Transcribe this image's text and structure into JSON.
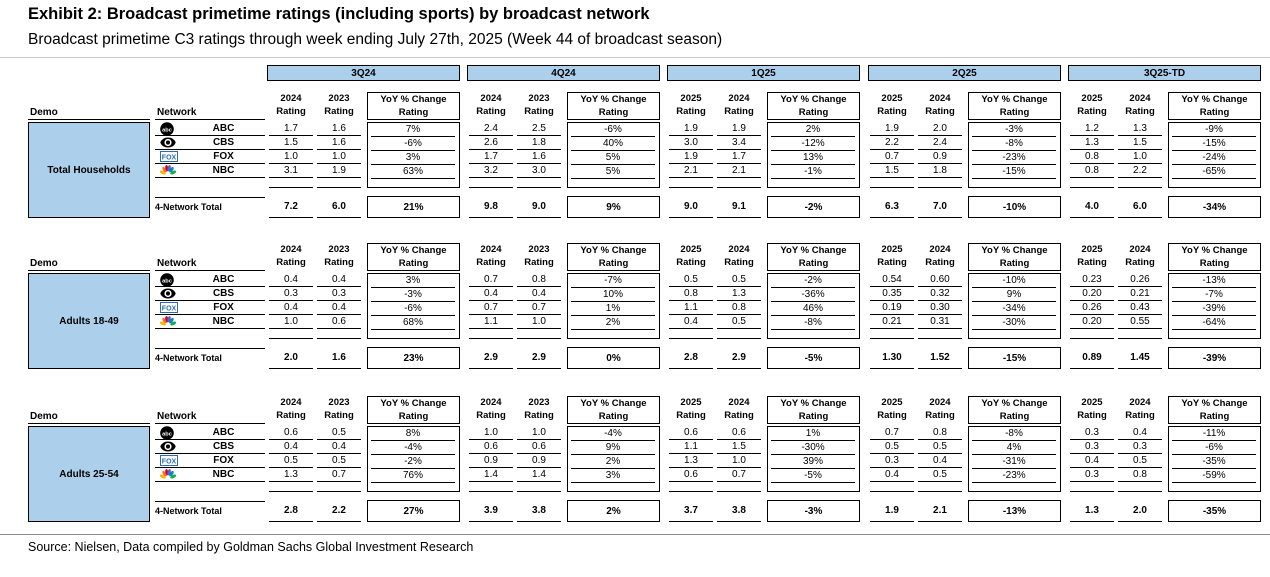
{
  "page": {
    "title": "Exhibit 2: Broadcast primetime ratings (including sports) by broadcast network",
    "subtitle": "Broadcast primetime C3 ratings through week ending July 27th, 2025 (Week 44 of broadcast season)",
    "source": "Source: Nielsen, Data compiled by Goldman Sachs Global Investment Research"
  },
  "colors": {
    "header_blue": "#ACCFEB",
    "border": "#000000"
  },
  "chart_data": {
    "type": "table",
    "title": "Broadcast primetime ratings (including sports) by broadcast network",
    "demo_col_header": "Demo",
    "network_col_header": "Network",
    "col_subheader": "Rating",
    "yoy_header": [
      "YoY % Change",
      "Rating"
    ],
    "total_row_label": "4-Network Total",
    "quarter_groups": [
      {
        "label": "3Q24",
        "col_years": [
          "2024",
          "2023"
        ]
      },
      {
        "label": "4Q24",
        "col_years": [
          "2024",
          "2023"
        ]
      },
      {
        "label": "1Q25",
        "col_years": [
          "2025",
          "2024"
        ]
      },
      {
        "label": "2Q25",
        "col_years": [
          "2025",
          "2024"
        ]
      },
      {
        "label": "3Q25-TD",
        "col_years": [
          "2025",
          "2024"
        ]
      }
    ],
    "networks": [
      {
        "name": "ABC",
        "icon": "abc-logo-icon"
      },
      {
        "name": "CBS",
        "icon": "cbs-eye-icon"
      },
      {
        "name": "FOX",
        "icon": "fox-logo-icon"
      },
      {
        "name": "NBC",
        "icon": "nbc-peacock-icon"
      }
    ],
    "blocks": [
      {
        "demo": "Total Households",
        "quarters": [
          {
            "rows": [
              [
                "1.7",
                "1.6",
                "7%"
              ],
              [
                "1.5",
                "1.6",
                "-6%"
              ],
              [
                "1.0",
                "1.0",
                "3%"
              ],
              [
                "3.1",
                "1.9",
                "63%"
              ]
            ],
            "total": [
              "7.2",
              "6.0",
              "21%"
            ]
          },
          {
            "rows": [
              [
                "2.4",
                "2.5",
                "-6%"
              ],
              [
                "2.6",
                "1.8",
                "40%"
              ],
              [
                "1.7",
                "1.6",
                "5%"
              ],
              [
                "3.2",
                "3.0",
                "5%"
              ]
            ],
            "total": [
              "9.8",
              "9.0",
              "9%"
            ]
          },
          {
            "rows": [
              [
                "1.9",
                "1.9",
                "2%"
              ],
              [
                "3.0",
                "3.4",
                "-12%"
              ],
              [
                "1.9",
                "1.7",
                "13%"
              ],
              [
                "2.1",
                "2.1",
                "-1%"
              ]
            ],
            "total": [
              "9.0",
              "9.1",
              "-2%"
            ]
          },
          {
            "rows": [
              [
                "1.9",
                "2.0",
                "-3%"
              ],
              [
                "2.2",
                "2.4",
                "-8%"
              ],
              [
                "0.7",
                "0.9",
                "-23%"
              ],
              [
                "1.5",
                "1.8",
                "-15%"
              ]
            ],
            "total": [
              "6.3",
              "7.0",
              "-10%"
            ]
          },
          {
            "rows": [
              [
                "1.2",
                "1.3",
                "-9%"
              ],
              [
                "1.3",
                "1.5",
                "-15%"
              ],
              [
                "0.8",
                "1.0",
                "-24%"
              ],
              [
                "0.8",
                "2.2",
                "-65%"
              ]
            ],
            "total": [
              "4.0",
              "6.0",
              "-34%"
            ]
          }
        ]
      },
      {
        "demo": "Adults 18-49",
        "quarters": [
          {
            "rows": [
              [
                "0.4",
                "0.4",
                "3%"
              ],
              [
                "0.3",
                "0.3",
                "-3%"
              ],
              [
                "0.4",
                "0.4",
                "-6%"
              ],
              [
                "1.0",
                "0.6",
                "68%"
              ]
            ],
            "total": [
              "2.0",
              "1.6",
              "23%"
            ]
          },
          {
            "rows": [
              [
                "0.7",
                "0.8",
                "-7%"
              ],
              [
                "0.4",
                "0.4",
                "10%"
              ],
              [
                "0.7",
                "0.7",
                "1%"
              ],
              [
                "1.1",
                "1.0",
                "2%"
              ]
            ],
            "total": [
              "2.9",
              "2.9",
              "0%"
            ]
          },
          {
            "rows": [
              [
                "0.5",
                "0.5",
                "-2%"
              ],
              [
                "0.8",
                "1.3",
                "-36%"
              ],
              [
                "1.1",
                "0.8",
                "46%"
              ],
              [
                "0.4",
                "0.5",
                "-8%"
              ]
            ],
            "total": [
              "2.8",
              "2.9",
              "-5%"
            ]
          },
          {
            "rows": [
              [
                "0.54",
                "0.60",
                "-10%"
              ],
              [
                "0.35",
                "0.32",
                "9%"
              ],
              [
                "0.19",
                "0.30",
                "-34%"
              ],
              [
                "0.21",
                "0.31",
                "-30%"
              ]
            ],
            "total": [
              "1.30",
              "1.52",
              "-15%"
            ]
          },
          {
            "rows": [
              [
                "0.23",
                "0.26",
                "-13%"
              ],
              [
                "0.20",
                "0.21",
                "-7%"
              ],
              [
                "0.26",
                "0.43",
                "-39%"
              ],
              [
                "0.20",
                "0.55",
                "-64%"
              ]
            ],
            "total": [
              "0.89",
              "1.45",
              "-39%"
            ]
          }
        ]
      },
      {
        "demo": "Adults 25-54",
        "quarters": [
          {
            "rows": [
              [
                "0.6",
                "0.5",
                "8%"
              ],
              [
                "0.4",
                "0.4",
                "-4%"
              ],
              [
                "0.5",
                "0.5",
                "-2%"
              ],
              [
                "1.3",
                "0.7",
                "76%"
              ]
            ],
            "total": [
              "2.8",
              "2.2",
              "27%"
            ]
          },
          {
            "rows": [
              [
                "1.0",
                "1.0",
                "-4%"
              ],
              [
                "0.6",
                "0.6",
                "9%"
              ],
              [
                "0.9",
                "0.9",
                "2%"
              ],
              [
                "1.4",
                "1.4",
                "3%"
              ]
            ],
            "total": [
              "3.9",
              "3.8",
              "2%"
            ]
          },
          {
            "rows": [
              [
                "0.6",
                "0.6",
                "1%"
              ],
              [
                "1.1",
                "1.5",
                "-30%"
              ],
              [
                "1.3",
                "1.0",
                "39%"
              ],
              [
                "0.6",
                "0.7",
                "-5%"
              ]
            ],
            "total": [
              "3.7",
              "3.8",
              "-3%"
            ]
          },
          {
            "rows": [
              [
                "0.7",
                "0.8",
                "-8%"
              ],
              [
                "0.5",
                "0.5",
                "4%"
              ],
              [
                "0.3",
                "0.4",
                "-31%"
              ],
              [
                "0.4",
                "0.5",
                "-23%"
              ]
            ],
            "total": [
              "1.9",
              "2.1",
              "-13%"
            ]
          },
          {
            "rows": [
              [
                "0.3",
                "0.4",
                "-11%"
              ],
              [
                "0.3",
                "0.3",
                "-6%"
              ],
              [
                "0.4",
                "0.5",
                "-35%"
              ],
              [
                "0.3",
                "0.8",
                "-59%"
              ]
            ],
            "total": [
              "1.3",
              "2.0",
              "-35%"
            ]
          }
        ]
      }
    ]
  }
}
